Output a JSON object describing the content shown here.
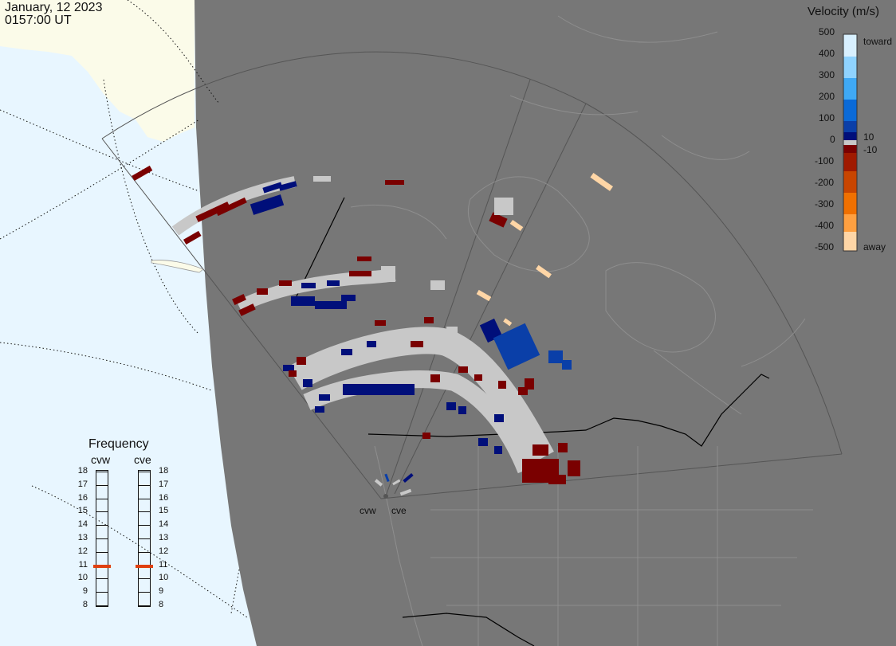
{
  "header": {
    "date": "January, 12 2023",
    "time": "0157:00 UT"
  },
  "colorbar": {
    "title": "Velocity (m/s)",
    "ticks": [
      "500",
      "400",
      "300",
      "200",
      "100",
      "0",
      "-100",
      "-200",
      "-300",
      "-400",
      "-500"
    ],
    "label_toward": "toward",
    "label_away": "away",
    "label_pos": "10",
    "label_neg": "-10",
    "colors": {
      "toward": [
        "#d8f0ff",
        "#8fd3ff",
        "#3fa9f5",
        "#0a6ad8",
        "#0a3fa8",
        "#000f7a"
      ],
      "away": [
        "#7a0000",
        "#a01a00",
        "#c84500",
        "#f07000",
        "#ffa040",
        "#ffd6a6"
      ],
      "gray": "#c8c8c8"
    }
  },
  "frequency": {
    "title": "Frequency",
    "radars": [
      {
        "name": "cvw",
        "value": 10.9
      },
      {
        "name": "cve",
        "value": 10.9
      }
    ],
    "scale": [
      "18",
      "17",
      "16",
      "15",
      "14",
      "13",
      "12",
      "11",
      "10",
      "9",
      "8"
    ],
    "marker_color": "#e04010"
  },
  "radars": {
    "west": "cvw",
    "east": "cve"
  },
  "colors": {
    "ocean": "#e8f6ff",
    "land_dark": "#777777",
    "land_light": "#fbfbe9",
    "boundary": "#9a9a9a",
    "border": "#000000"
  }
}
